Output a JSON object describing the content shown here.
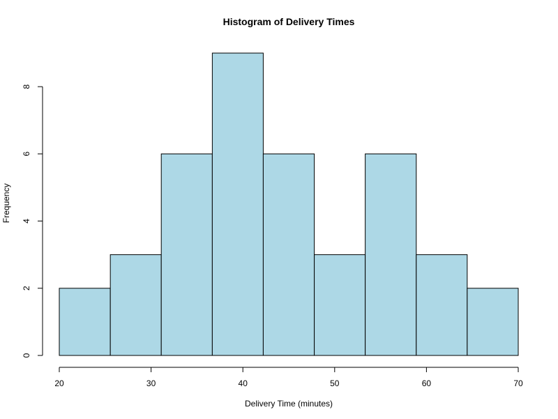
{
  "chart_data": {
    "type": "bar",
    "title": "Histogram of Delivery Times",
    "xlabel": "Delivery Time (minutes)",
    "ylabel": "Frequency",
    "bin_edges": [
      20,
      25.56,
      31.11,
      36.67,
      42.22,
      47.78,
      53.33,
      58.89,
      64.44,
      70
    ],
    "values": [
      2,
      3,
      6,
      9,
      6,
      3,
      6,
      3,
      2
    ],
    "xlim": [
      20,
      70
    ],
    "ylim": [
      0,
      9
    ],
    "x_ticks": [
      "20",
      "30",
      "40",
      "50",
      "60",
      "70"
    ],
    "y_ticks": [
      "0",
      "2",
      "4",
      "6",
      "8"
    ],
    "grid": false,
    "legend": "none",
    "colors": {
      "bar_fill": "#add8e6",
      "bar_stroke": "#000000",
      "axis": "#000000"
    }
  }
}
